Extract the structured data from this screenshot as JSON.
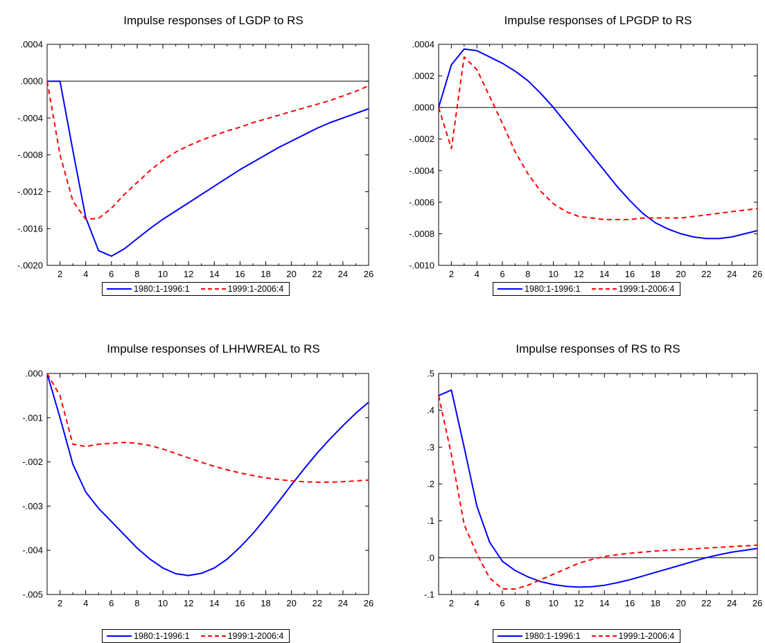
{
  "chart_data": [
    {
      "type": "line",
      "title": "Impulse responses of LGDP to RS",
      "x": [
        1,
        2,
        3,
        4,
        5,
        6,
        7,
        8,
        9,
        10,
        11,
        12,
        13,
        14,
        15,
        16,
        17,
        18,
        19,
        20,
        21,
        22,
        23,
        24,
        25,
        26
      ],
      "xlim": [
        1,
        26
      ],
      "xticks": [
        2,
        4,
        6,
        8,
        10,
        12,
        14,
        16,
        18,
        20,
        22,
        24,
        26
      ],
      "xtick_labels": [
        "2",
        "4",
        "6",
        "8",
        "10",
        "12",
        "14",
        "16",
        "18",
        "20",
        "22",
        "24",
        "26"
      ],
      "ylim": [
        -0.002,
        0.0004
      ],
      "yticks": [
        0.0004,
        0.0,
        -0.0004,
        -0.0008,
        -0.0012,
        -0.0016,
        -0.002
      ],
      "ytick_labels": [
        ".0004",
        ".0000",
        "-.0004",
        "-.0008",
        "-.0012",
        "-.0016",
        "-.0020"
      ],
      "zero_line": true,
      "grid": false,
      "legend_position": "bottom",
      "series": [
        {
          "name": "1980:1-1996:1",
          "color": "#0000ff",
          "style": "solid",
          "values": [
            0.0,
            0.0,
            -0.00075,
            -0.00148,
            -0.00184,
            -0.0019,
            -0.00182,
            -0.00171,
            -0.0016,
            -0.0015,
            -0.00141,
            -0.00132,
            -0.00123,
            -0.00114,
            -0.00105,
            -0.00096,
            -0.00088,
            -0.0008,
            -0.00072,
            -0.00065,
            -0.00058,
            -0.00051,
            -0.00045,
            -0.0004,
            -0.00035,
            -0.0003
          ]
        },
        {
          "name": "1999:1-2006:4",
          "color": "#ff0000",
          "style": "dashed",
          "values": [
            0.0,
            -0.0008,
            -0.0013,
            -0.0015,
            -0.00149,
            -0.00138,
            -0.00123,
            -0.0011,
            -0.00097,
            -0.00086,
            -0.00077,
            -0.0007,
            -0.00064,
            -0.00059,
            -0.00054,
            -0.0005,
            -0.00045,
            -0.00041,
            -0.00037,
            -0.00033,
            -0.00029,
            -0.00025,
            -0.00021,
            -0.00016,
            -0.00011,
            -5e-05
          ]
        }
      ]
    },
    {
      "type": "line",
      "title": "Impulse responses of LPGDP to RS",
      "x": [
        1,
        2,
        3,
        4,
        5,
        6,
        7,
        8,
        9,
        10,
        11,
        12,
        13,
        14,
        15,
        16,
        17,
        18,
        19,
        20,
        21,
        22,
        23,
        24,
        25,
        26
      ],
      "xlim": [
        1,
        26
      ],
      "xticks": [
        2,
        4,
        6,
        8,
        10,
        12,
        14,
        16,
        18,
        20,
        22,
        24,
        26
      ],
      "xtick_labels": [
        "2",
        "4",
        "6",
        "8",
        "10",
        "12",
        "14",
        "16",
        "18",
        "20",
        "22",
        "24",
        "26"
      ],
      "ylim": [
        -0.001,
        0.0004
      ],
      "yticks": [
        0.0004,
        0.0002,
        0.0,
        -0.0002,
        -0.0004,
        -0.0006,
        -0.0008,
        -0.001
      ],
      "ytick_labels": [
        ".0004",
        ".0002",
        ".0000",
        "-.0002",
        "-.0004",
        "-.0006",
        "-.0008",
        "-.0010"
      ],
      "zero_line": true,
      "grid": false,
      "legend_position": "bottom",
      "series": [
        {
          "name": "1980:1-1996:1",
          "color": "#0000ff",
          "style": "solid",
          "values": [
            0.0,
            0.00027,
            0.00037,
            0.00036,
            0.00032,
            0.00028,
            0.00023,
            0.00017,
            9e-05,
            0.0,
            -0.0001,
            -0.0002,
            -0.0003,
            -0.0004,
            -0.0005,
            -0.00059,
            -0.00067,
            -0.00073,
            -0.00077,
            -0.0008,
            -0.00082,
            -0.00083,
            -0.00083,
            -0.00082,
            -0.0008,
            -0.00078
          ]
        },
        {
          "name": "1999:1-2006:4",
          "color": "#ff0000",
          "style": "dashed",
          "values": [
            0.0,
            -0.00026,
            0.00032,
            0.00024,
            7e-05,
            -0.0001,
            -0.00028,
            -0.00042,
            -0.00053,
            -0.00061,
            -0.00066,
            -0.00069,
            -0.0007,
            -0.00071,
            -0.00071,
            -0.00071,
            -0.0007,
            -0.0007,
            -0.0007,
            -0.0007,
            -0.00069,
            -0.00068,
            -0.00067,
            -0.00066,
            -0.00065,
            -0.00064
          ]
        }
      ]
    },
    {
      "type": "line",
      "title": "Impulse responses of LHHWREAL to RS",
      "x": [
        1,
        2,
        3,
        4,
        5,
        6,
        7,
        8,
        9,
        10,
        11,
        12,
        13,
        14,
        15,
        16,
        17,
        18,
        19,
        20,
        21,
        22,
        23,
        24,
        25,
        26
      ],
      "xlim": [
        1,
        26
      ],
      "xticks": [
        2,
        4,
        6,
        8,
        10,
        12,
        14,
        16,
        18,
        20,
        22,
        24,
        26
      ],
      "xtick_labels": [
        "2",
        "4",
        "6",
        "8",
        "10",
        "12",
        "14",
        "16",
        "18",
        "20",
        "22",
        "24",
        "26"
      ],
      "ylim": [
        -0.005,
        0.0
      ],
      "yticks": [
        0.0,
        -0.001,
        -0.002,
        -0.003,
        -0.004,
        -0.005
      ],
      "ytick_labels": [
        ".000",
        "-.001",
        "-.002",
        "-.003",
        "-.004",
        "-.005"
      ],
      "zero_line": false,
      "grid": false,
      "legend_position": "bottom",
      "series": [
        {
          "name": "1980:1-1996:1",
          "color": "#0000ff",
          "style": "solid",
          "values": [
            0.0,
            -0.001,
            -0.00205,
            -0.00268,
            -0.00305,
            -0.00335,
            -0.00365,
            -0.00395,
            -0.0042,
            -0.0044,
            -0.00453,
            -0.00457,
            -0.00452,
            -0.0044,
            -0.0042,
            -0.00393,
            -0.00362,
            -0.00327,
            -0.0029,
            -0.00252,
            -0.00215,
            -0.0018,
            -0.00148,
            -0.00118,
            -0.0009,
            -0.00065
          ]
        },
        {
          "name": "1999:1-2006:4",
          "color": "#ff0000",
          "style": "dashed",
          "values": [
            0.0,
            -0.0005,
            -0.0016,
            -0.00165,
            -0.0016,
            -0.00158,
            -0.00156,
            -0.00158,
            -0.00163,
            -0.00171,
            -0.00181,
            -0.00191,
            -0.00201,
            -0.0021,
            -0.00218,
            -0.00225,
            -0.00231,
            -0.00236,
            -0.0024,
            -0.00243,
            -0.00245,
            -0.00246,
            -0.00246,
            -0.00245,
            -0.00243,
            -0.00241
          ]
        }
      ]
    },
    {
      "type": "line",
      "title": "Impulse responses of RS to RS",
      "x": [
        1,
        2,
        3,
        4,
        5,
        6,
        7,
        8,
        9,
        10,
        11,
        12,
        13,
        14,
        15,
        16,
        17,
        18,
        19,
        20,
        21,
        22,
        23,
        24,
        25,
        26
      ],
      "xlim": [
        1,
        26
      ],
      "xticks": [
        2,
        4,
        6,
        8,
        10,
        12,
        14,
        16,
        18,
        20,
        22,
        24,
        26
      ],
      "xtick_labels": [
        "2",
        "4",
        "6",
        "8",
        "10",
        "12",
        "14",
        "16",
        "18",
        "20",
        "22",
        "24",
        "26"
      ],
      "ylim": [
        -0.1,
        0.5
      ],
      "yticks": [
        0.5,
        0.4,
        0.3,
        0.2,
        0.1,
        0.0,
        -0.1
      ],
      "ytick_labels": [
        ".5",
        ".4",
        ".3",
        ".2",
        ".1",
        ".0",
        "-.1"
      ],
      "zero_line": true,
      "grid": false,
      "legend_position": "bottom",
      "series": [
        {
          "name": "1980:1-1996:1",
          "color": "#0000ff",
          "style": "solid",
          "values": [
            0.44,
            0.455,
            0.3,
            0.14,
            0.042,
            -0.01,
            -0.035,
            -0.052,
            -0.065,
            -0.073,
            -0.078,
            -0.08,
            -0.079,
            -0.075,
            -0.068,
            -0.06,
            -0.05,
            -0.04,
            -0.03,
            -0.02,
            -0.01,
            0.0,
            0.008,
            0.015,
            0.02,
            0.025
          ]
        },
        {
          "name": "1999:1-2006:4",
          "color": "#ff0000",
          "style": "dashed",
          "values": [
            0.44,
            0.28,
            0.09,
            0.01,
            -0.055,
            -0.085,
            -0.085,
            -0.075,
            -0.06,
            -0.045,
            -0.03,
            -0.015,
            -0.005,
            0.003,
            0.008,
            0.012,
            0.015,
            0.018,
            0.02,
            0.022,
            0.024,
            0.026,
            0.028,
            0.03,
            0.032,
            0.034
          ]
        }
      ]
    }
  ]
}
